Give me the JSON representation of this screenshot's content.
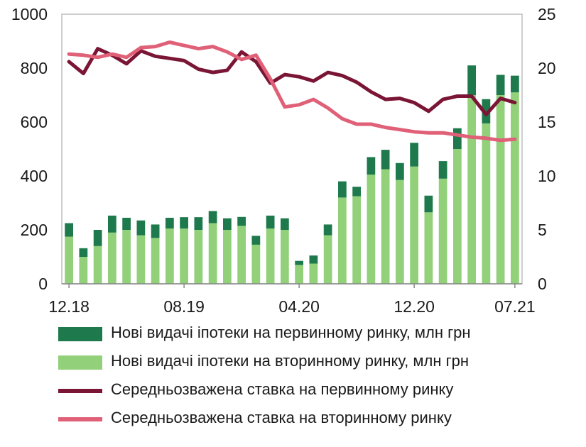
{
  "chart_data": {
    "type": "bar+line",
    "title": "",
    "x_tick_labels": [
      "12.18",
      "08.19",
      "04.20",
      "12.20",
      "07.21"
    ],
    "x_tick_indices": [
      0,
      8,
      16,
      24,
      31
    ],
    "categories": [
      "12.18",
      "01.19",
      "02.19",
      "03.19",
      "04.19",
      "05.19",
      "06.19",
      "07.19",
      "08.19",
      "09.19",
      "10.19",
      "11.19",
      "12.19",
      "01.20",
      "02.20",
      "03.20",
      "04.20",
      "05.20",
      "06.20",
      "07.20",
      "08.20",
      "09.20",
      "10.20",
      "11.20",
      "12.20",
      "01.21",
      "02.21",
      "03.21",
      "04.21",
      "05.21",
      "06.21",
      "07.21"
    ],
    "left_axis": {
      "ylim": [
        0,
        1000
      ],
      "ticks": [
        "0",
        "200",
        "400",
        "600",
        "800",
        "1000"
      ]
    },
    "right_axis": {
      "ylim": [
        0,
        25
      ],
      "ticks": [
        "0",
        "5",
        "10",
        "15",
        "20",
        "25"
      ]
    },
    "grid": false,
    "legend_position": "bottom",
    "stacked_bars": [
      {
        "name": "Нові видачі іпотеки на вторинному ринку, млн грн",
        "color": "#92d07a",
        "values": [
          175,
          100,
          140,
          190,
          200,
          180,
          170,
          205,
          205,
          200,
          225,
          200,
          215,
          145,
          205,
          200,
          70,
          75,
          180,
          320,
          325,
          405,
          425,
          385,
          435,
          265,
          390,
          500,
          700,
          595,
          700,
          710
        ]
      },
      {
        "name": "Нові видачі іпотеки на первинному ринку, млн грн",
        "color": "#1e7a4c",
        "values": [
          50,
          32,
          60,
          63,
          45,
          55,
          50,
          40,
          42,
          47,
          45,
          43,
          33,
          33,
          48,
          43,
          15,
          30,
          40,
          60,
          35,
          65,
          72,
          63,
          88,
          62,
          65,
          77,
          110,
          90,
          75,
          62
        ]
      }
    ],
    "lines": [
      {
        "name": "Середньозважена ставка на первинному ринку",
        "color": "#7a1535",
        "axis": "right",
        "values": [
          20.6,
          19.5,
          21.8,
          21.2,
          20.4,
          21.6,
          21.1,
          20.9,
          20.7,
          19.9,
          19.6,
          19.8,
          21.5,
          20.6,
          18.6,
          19.4,
          19.2,
          18.8,
          19.6,
          19.3,
          18.7,
          17.8,
          17.1,
          17.2,
          16.8,
          16.0,
          17.1,
          17.4,
          17.4,
          15.7,
          17.2,
          16.8
        ]
      },
      {
        "name": "Середньозважена ставка на вторинному ринку",
        "color": "#e06077",
        "axis": "right",
        "values": [
          21.3,
          21.2,
          21.0,
          21.3,
          21.0,
          21.9,
          22.0,
          22.4,
          22.1,
          21.8,
          22.0,
          21.5,
          20.8,
          21.2,
          19.0,
          16.4,
          16.6,
          17.1,
          16.3,
          15.3,
          14.8,
          14.8,
          14.5,
          14.3,
          14.1,
          14.0,
          14.0,
          13.8,
          13.6,
          13.5,
          13.3,
          13.4
        ]
      }
    ]
  },
  "legend": [
    {
      "label": "Нові видачі іпотеки на первинному ринку, млн грн",
      "color": "#1e7a4c",
      "kind": "bar"
    },
    {
      "label": "Нові видачі іпотеки на вторинному ринку, млн грн",
      "color": "#92d07a",
      "kind": "bar"
    },
    {
      "label": "Середньозважена ставка на первинному ринку",
      "color": "#7a1535",
      "kind": "line"
    },
    {
      "label": "Середньозважена ставка на вторинному ринку",
      "color": "#e06077",
      "kind": "line"
    }
  ]
}
